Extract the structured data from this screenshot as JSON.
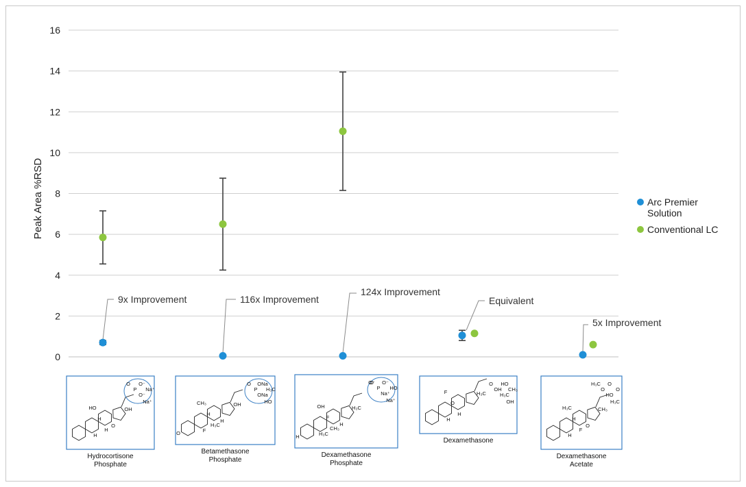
{
  "chart_data": {
    "type": "scatter",
    "title": "",
    "xlabel": "",
    "ylabel": "Peak Area %RSD",
    "ylim": [
      0,
      16
    ],
    "yticks": [
      0,
      2,
      4,
      6,
      8,
      10,
      12,
      14,
      16
    ],
    "grid": "horizontal",
    "legend_position": "right",
    "categories": [
      "Hydrocortisone Phosphate",
      "Betamethasone Phosphate",
      "Dexamethasone Phosphate",
      "Dexamethasone",
      "Dexamethasone Acetate"
    ],
    "series": [
      {
        "name": "Arc Premier Solution",
        "color": "#1f8fd6",
        "values": [
          0.7,
          0.05,
          0.05,
          1.05,
          0.1
        ],
        "error": [
          0.1,
          0,
          0,
          0.25,
          0
        ]
      },
      {
        "name": "Conventional LC",
        "color": "#8dc63f",
        "values": [
          5.85,
          6.5,
          11.05,
          1.15,
          0.6
        ],
        "error": [
          1.3,
          2.25,
          2.9,
          0.05,
          0
        ]
      }
    ],
    "annotations": [
      {
        "text": "9x Improvement",
        "category": 0
      },
      {
        "text": "116x Improvement",
        "category": 1
      },
      {
        "text": "124x Improvement",
        "category": 2
      },
      {
        "text": "Equivalent",
        "category": 3
      },
      {
        "text": "5x Improvement",
        "category": 4
      }
    ],
    "structures": [
      {
        "name_lines": [
          "Hydrocortisone",
          "Phosphate"
        ],
        "atoms": [
          "O",
          "P",
          "O⁻",
          "O⁻",
          "Na⁺",
          "Na⁺",
          "OH",
          "HO",
          "H",
          "H",
          "H",
          "O"
        ]
      },
      {
        "name_lines": [
          "Betamethasone",
          "Phosphate"
        ],
        "atoms": [
          "O",
          "P",
          "ONa",
          "ONa",
          "HO",
          "H₃C",
          "OH",
          "CH₃",
          "H₃C",
          "F",
          "H",
          "H",
          "O"
        ]
      },
      {
        "name_lines": [
          "Dexamethasone",
          "Phosphate"
        ],
        "atoms": [
          "O⁻",
          "P",
          "O⁻",
          "Na⁺",
          "Na⁺",
          "HO",
          "H₃C",
          "OH",
          "CH₃",
          "H₃C",
          "F",
          "H",
          "H",
          "O"
        ]
      },
      {
        "name_lines": [
          "Dexamethasone"
        ],
        "atoms": [
          "O",
          "OH",
          "HO",
          "H₃C",
          "OH",
          "CH₃",
          "H₃C",
          "F",
          "H",
          "H",
          "O"
        ]
      },
      {
        "name_lines": [
          "Dexamethasone",
          "Acetate"
        ],
        "atoms": [
          "H₃C",
          "O",
          "O",
          "HO",
          "H₃C",
          "O",
          "CH₃",
          "H₃C",
          "F",
          "H",
          "H",
          "O"
        ]
      }
    ]
  }
}
